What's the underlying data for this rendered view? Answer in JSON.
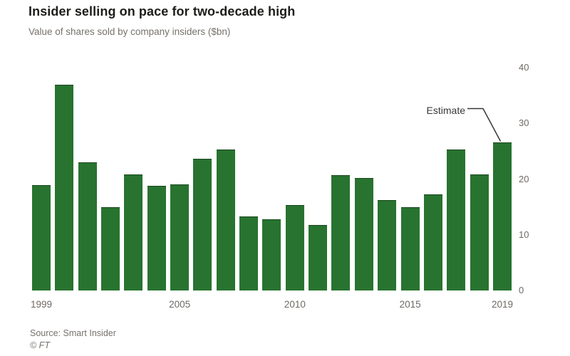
{
  "header": {
    "title": "Insider selling on pace for two-decade high",
    "subtitle": "Value of shares sold by company insiders ($bn)"
  },
  "annotation": {
    "label": "Estimate"
  },
  "footer": {
    "source": "Source: Smart Insider",
    "copyright": "© FT"
  },
  "colors": {
    "bar_green": "#287330",
    "muted_text": "#76726d",
    "title_text": "#1d1d1b",
    "annotation_line": "#3a3836"
  },
  "chart_data": {
    "type": "bar",
    "title": "Insider selling on pace for two-decade high",
    "subtitle": "Value of shares sold by company insiders ($bn)",
    "xlabel": "",
    "ylabel": "Value of shares sold ($bn)",
    "categories": [
      1999,
      2000,
      2001,
      2002,
      2003,
      2004,
      2005,
      2006,
      2007,
      2008,
      2009,
      2010,
      2011,
      2012,
      2013,
      2014,
      2015,
      2016,
      2017,
      2018,
      2019
    ],
    "values": [
      18.9,
      37.0,
      23.0,
      14.9,
      20.8,
      18.8,
      19.0,
      23.6,
      25.3,
      13.3,
      12.8,
      15.4,
      11.8,
      20.7,
      20.2,
      16.3,
      14.9,
      17.2,
      25.3,
      20.9,
      26.6
    ],
    "ylim": [
      0,
      40
    ],
    "yticks": [
      0,
      10,
      20,
      30,
      40
    ],
    "ytick_side": "right",
    "xticks": [
      1999,
      2005,
      2010,
      2015,
      2019
    ],
    "grid": false,
    "legend": "none",
    "annotations": [
      {
        "text": "Estimate",
        "target_category": 2019
      }
    ]
  }
}
